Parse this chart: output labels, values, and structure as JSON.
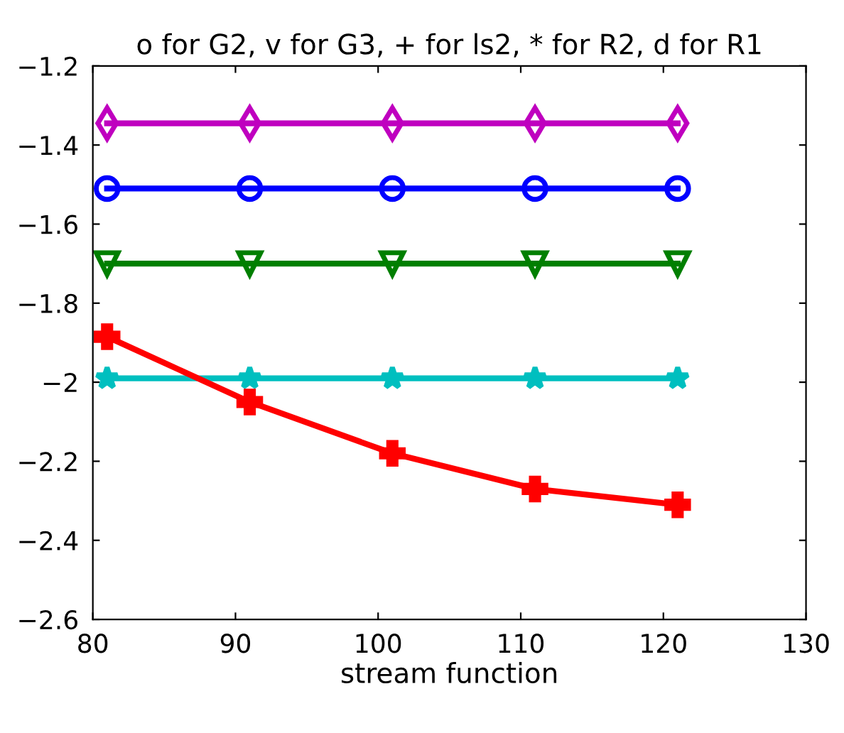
{
  "chart_data": {
    "type": "line",
    "title": "o for G2, v for G3, + for ls2, * for R2, d for R1",
    "xlabel": "stream function",
    "x": [
      81,
      91,
      101,
      111,
      121
    ],
    "series": [
      {
        "color": "#bf00bf",
        "marker": "diamond",
        "values": [
          -1.345,
          -1.345,
          -1.345,
          -1.345,
          -1.345
        ]
      },
      {
        "color": "#0000ff",
        "marker": "circle",
        "values": [
          -1.51,
          -1.51,
          -1.51,
          -1.51,
          -1.51
        ]
      },
      {
        "color": "#007f00",
        "marker": "triangle",
        "values": [
          -1.7,
          -1.7,
          -1.7,
          -1.7,
          -1.7
        ]
      },
      {
        "color": "#00bfbf",
        "marker": "star",
        "values": [
          -1.99,
          -1.99,
          -1.99,
          -1.99,
          -1.99
        ]
      },
      {
        "color": "#ff0000",
        "marker": "cross",
        "values": [
          -1.885,
          -2.05,
          -2.18,
          -2.27,
          -2.31
        ]
      }
    ],
    "xlim": [
      80,
      130
    ],
    "xticks": [
      80,
      90,
      100,
      110,
      120,
      130
    ],
    "ylim": [
      -2.6,
      -1.2
    ],
    "yticks": [
      -2.6,
      -2.4,
      -2.2,
      -2,
      -1.8,
      -1.6,
      -1.4,
      -1.2
    ],
    "grid": false,
    "legend": false
  }
}
